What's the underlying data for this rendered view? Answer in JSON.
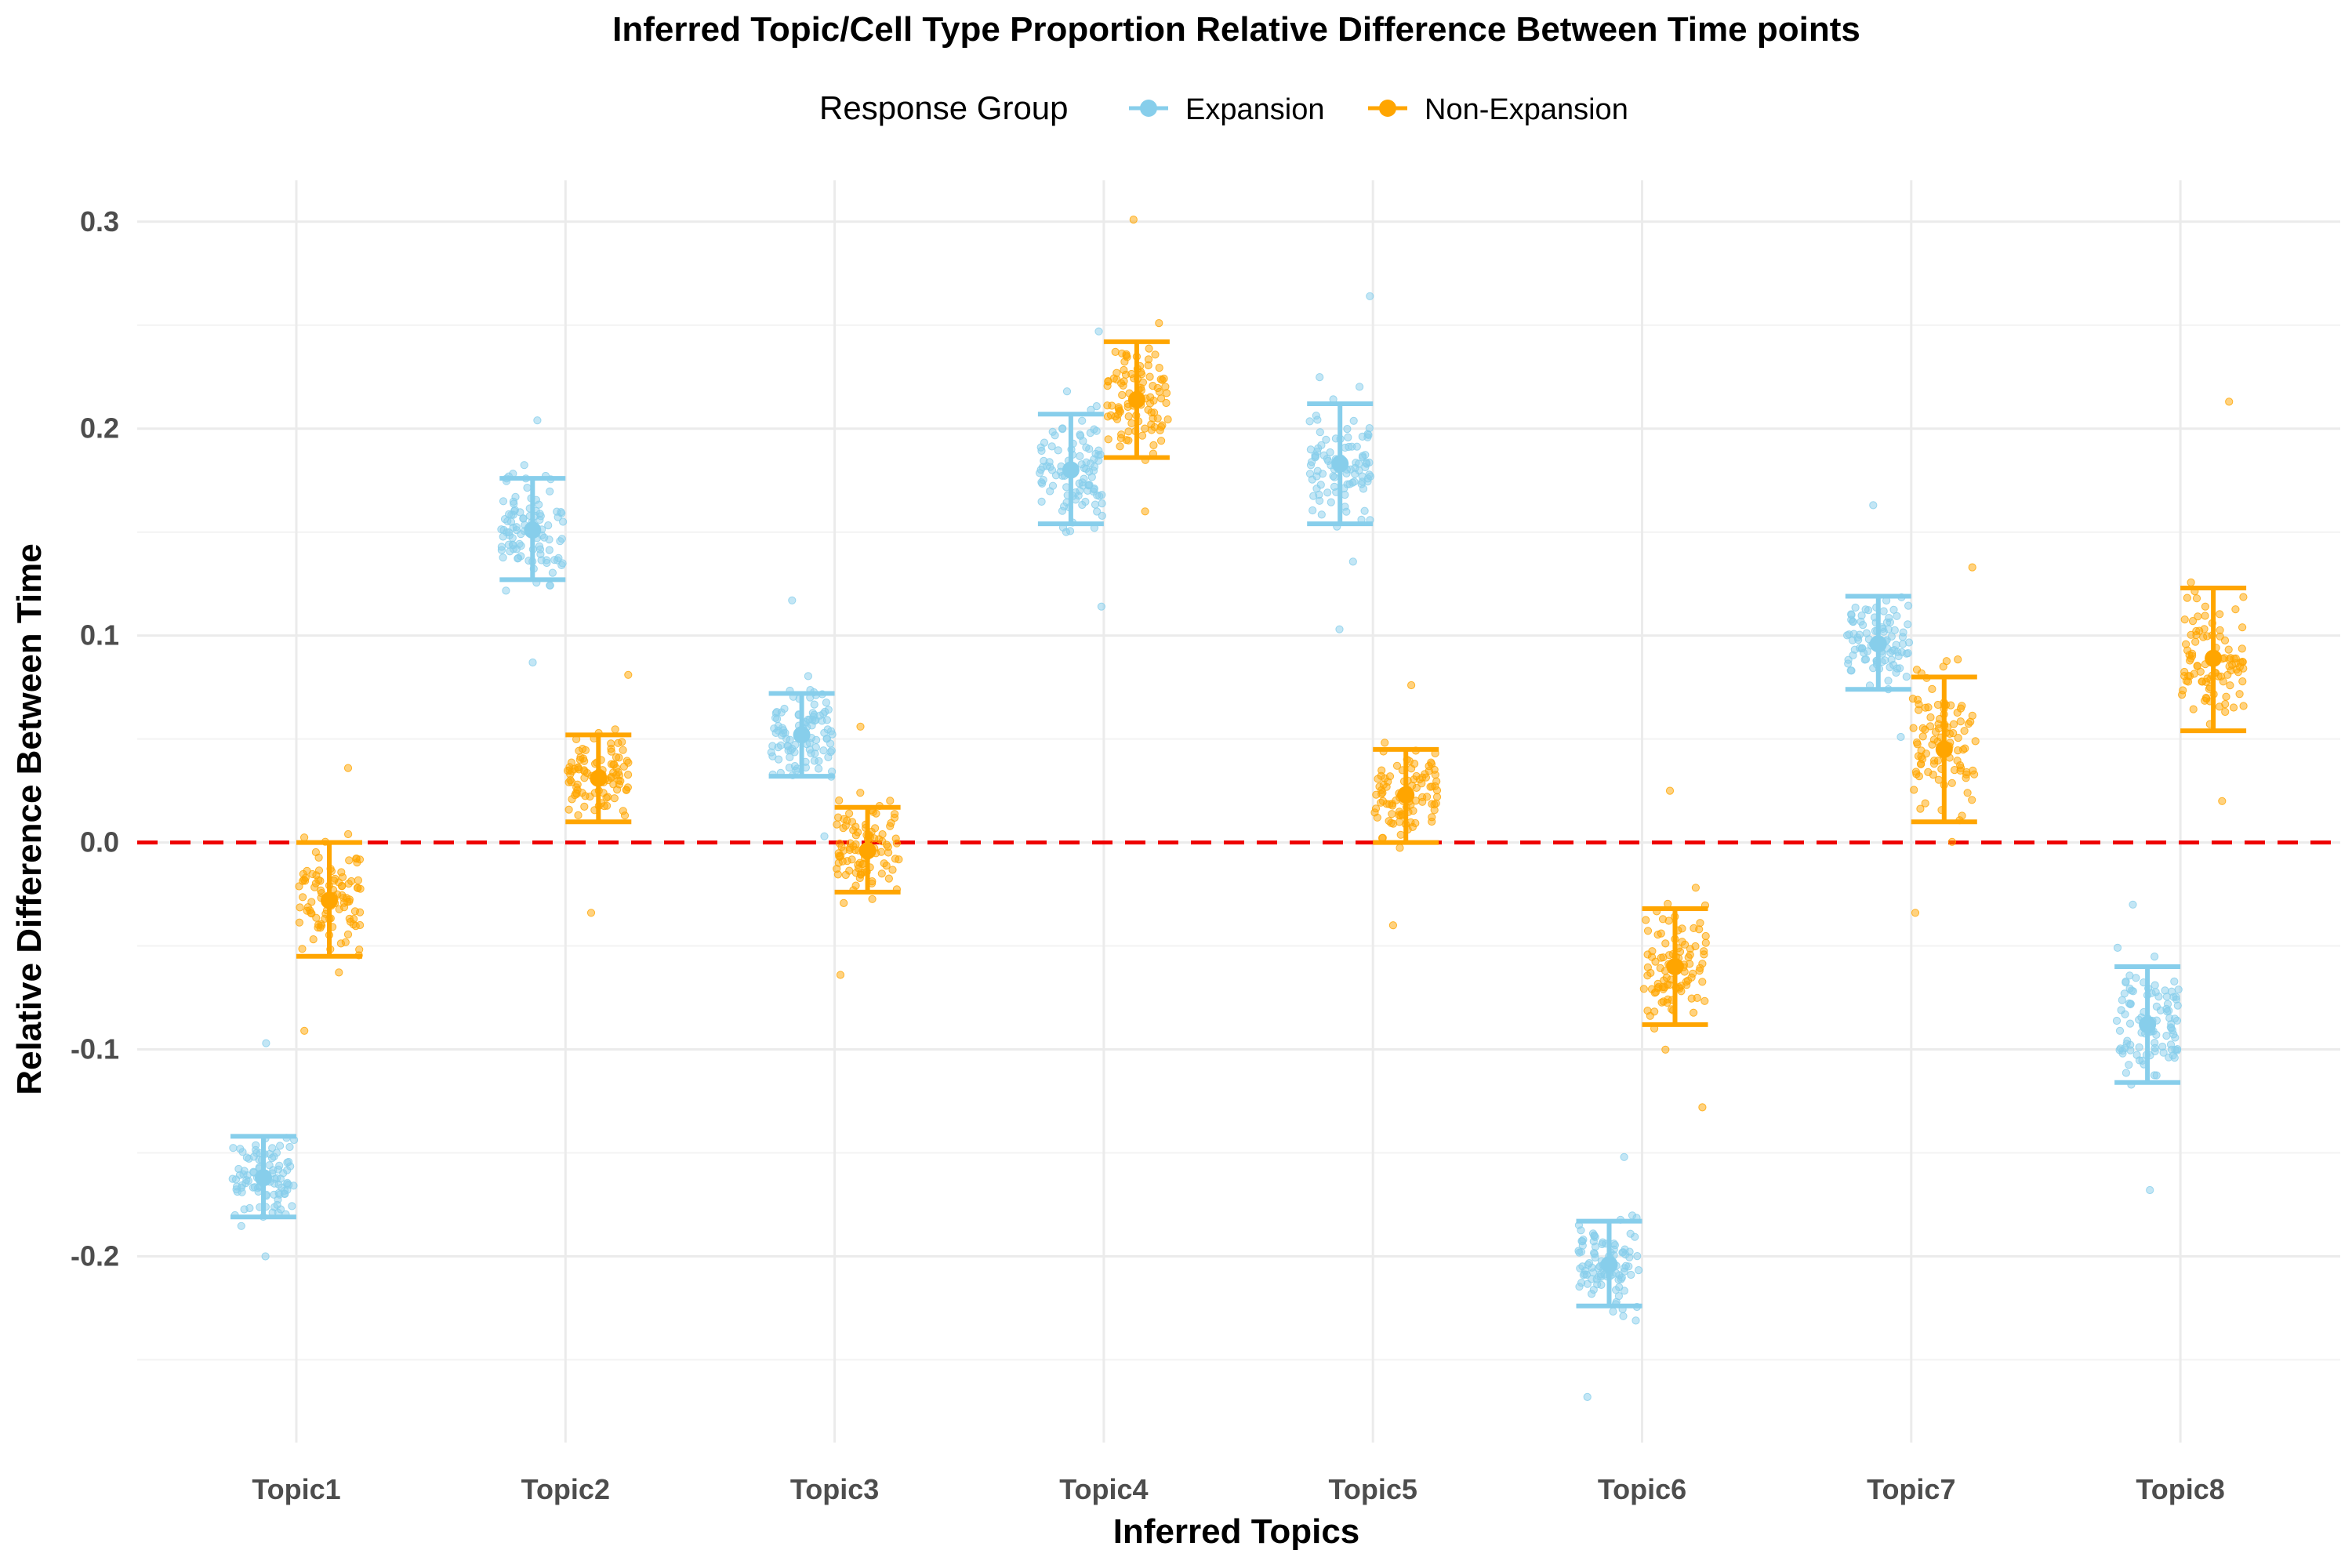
{
  "chart_data": {
    "type": "scatter",
    "title": "Inferred Topic/Cell Type Proportion Relative Difference Between Time points",
    "xlabel": "Inferred Topics",
    "ylabel": "Relative Difference Between Time",
    "legend": {
      "title": "Response Group",
      "placement": "top",
      "entries": [
        "Expansion",
        "Non-Expansion"
      ]
    },
    "categories": [
      "Topic1",
      "Topic2",
      "Topic3",
      "Topic4",
      "Topic5",
      "Topic6",
      "Topic7",
      "Topic8"
    ],
    "ylim": [
      -0.29,
      0.32
    ],
    "yticks": [
      -0.2,
      -0.1,
      0.0,
      0.1,
      0.2,
      0.3
    ],
    "ytick_labels": [
      "-0.2",
      "-0.1",
      "0.0",
      "0.1",
      "0.2",
      "0.3"
    ],
    "grid": true,
    "reference_line": {
      "y": 0.0,
      "style": "dashed",
      "color": "#ee0000"
    },
    "series": [
      {
        "name": "Expansion",
        "color": "#87ceeb",
        "mean": [
          -0.162,
          0.151,
          0.052,
          0.18,
          0.183,
          -0.204,
          0.096,
          -0.088
        ],
        "lower": [
          -0.181,
          0.127,
          0.032,
          0.154,
          0.154,
          -0.224,
          0.074,
          -0.116
        ],
        "upper": [
          -0.142,
          0.176,
          0.072,
          0.207,
          0.212,
          -0.183,
          0.119,
          -0.06
        ],
        "min": [
          -0.2,
          0.087,
          0.003,
          0.114,
          0.103,
          -0.268,
          0.051,
          -0.168
        ],
        "max": [
          -0.097,
          0.204,
          0.117,
          0.247,
          0.264,
          -0.152,
          0.163,
          -0.03
        ]
      },
      {
        "name": "Non-Expansion",
        "color": "#ffa500",
        "mean": [
          -0.028,
          0.031,
          -0.004,
          0.214,
          0.023,
          -0.06,
          0.045,
          0.089
        ],
        "lower": [
          -0.055,
          0.01,
          -0.024,
          0.186,
          0.0,
          -0.088,
          0.01,
          0.054
        ],
        "upper": [
          0.0,
          0.052,
          0.017,
          0.242,
          0.045,
          -0.032,
          0.08,
          0.123
        ],
        "min": [
          -0.091,
          -0.034,
          -0.064,
          0.16,
          -0.04,
          -0.128,
          -0.034,
          0.02
        ],
        "max": [
          0.036,
          0.081,
          0.056,
          0.301,
          0.076,
          0.025,
          0.133,
          0.213
        ]
      }
    ]
  }
}
